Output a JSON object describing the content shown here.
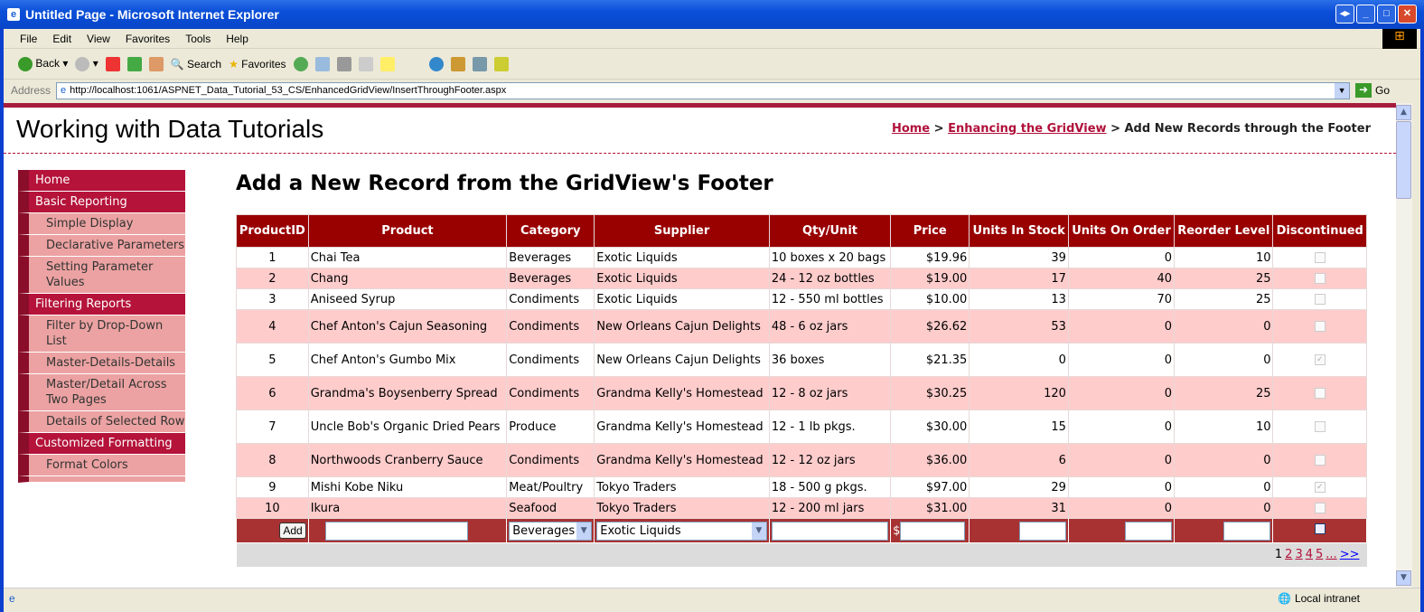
{
  "window": {
    "title": "Untitled Page - Microsoft Internet Explorer"
  },
  "menu": [
    "File",
    "Edit",
    "View",
    "Favorites",
    "Tools",
    "Help"
  ],
  "toolbar": {
    "back": "Back",
    "search": "Search",
    "favorites": "Favorites"
  },
  "address": {
    "label": "Address",
    "url": "http://localhost:1061/ASPNET_Data_Tutorial_53_CS/EnhancedGridView/InsertThroughFooter.aspx",
    "go": "Go"
  },
  "site": {
    "title": "Working with Data Tutorials"
  },
  "breadcrumb": {
    "home": "Home",
    "sep": ">",
    "section": "Enhancing the GridView",
    "current": "Add New Records through the Footer"
  },
  "sidebar": [
    {
      "label": "Home",
      "sub": false
    },
    {
      "label": "Basic Reporting",
      "sub": false
    },
    {
      "label": "Simple Display",
      "sub": true
    },
    {
      "label": "Declarative Parameters",
      "sub": true
    },
    {
      "label": "Setting Parameter Values",
      "sub": true
    },
    {
      "label": "Filtering Reports",
      "sub": false
    },
    {
      "label": "Filter by Drop-Down List",
      "sub": true
    },
    {
      "label": "Master-Details-Details",
      "sub": true
    },
    {
      "label": "Master/Detail Across Two Pages",
      "sub": true
    },
    {
      "label": "Details of Selected Row",
      "sub": true
    },
    {
      "label": "Customized Formatting",
      "sub": false
    },
    {
      "label": "Format Colors",
      "sub": true
    },
    {
      "label": "",
      "sub": true
    }
  ],
  "heading": "Add a New Record from the GridView's Footer",
  "grid": {
    "columns": [
      "ProductID",
      "Product",
      "Category",
      "Supplier",
      "Qty/Unit",
      "Price",
      "Units In Stock",
      "Units On Order",
      "Reorder Level",
      "Discontinued"
    ],
    "rows": [
      [
        "1",
        "Chai Tea",
        "Beverages",
        "Exotic Liquids",
        "10 boxes x 20 bags",
        "$19.96",
        "39",
        "0",
        "10",
        false
      ],
      [
        "2",
        "Chang",
        "Beverages",
        "Exotic Liquids",
        "24 - 12 oz bottles",
        "$19.00",
        "17",
        "40",
        "25",
        false
      ],
      [
        "3",
        "Aniseed Syrup",
        "Condiments",
        "Exotic Liquids",
        "12 - 550 ml bottles",
        "$10.00",
        "13",
        "70",
        "25",
        false
      ],
      [
        "4",
        "Chef Anton's Cajun Seasoning",
        "Condiments",
        "New Orleans Cajun Delights",
        "48 - 6 oz jars",
        "$26.62",
        "53",
        "0",
        "0",
        false
      ],
      [
        "5",
        "Chef Anton's Gumbo Mix",
        "Condiments",
        "New Orleans Cajun Delights",
        "36 boxes",
        "$21.35",
        "0",
        "0",
        "0",
        true
      ],
      [
        "6",
        "Grandma's Boysenberry Spread",
        "Condiments",
        "Grandma Kelly's Homestead",
        "12 - 8 oz jars",
        "$30.25",
        "120",
        "0",
        "25",
        false
      ],
      [
        "7",
        "Uncle Bob's Organic Dried Pears",
        "Produce",
        "Grandma Kelly's Homestead",
        "12 - 1 lb pkgs.",
        "$30.00",
        "15",
        "0",
        "10",
        false
      ],
      [
        "8",
        "Northwoods Cranberry Sauce",
        "Condiments",
        "Grandma Kelly's Homestead",
        "12 - 12 oz jars",
        "$36.00",
        "6",
        "0",
        "0",
        false
      ],
      [
        "9",
        "Mishi Kobe Niku",
        "Meat/Poultry",
        "Tokyo Traders",
        "18 - 500 g pkgs.",
        "$97.00",
        "29",
        "0",
        "0",
        true
      ],
      [
        "10",
        "Ikura",
        "Seafood",
        "Tokyo Traders",
        "12 - 200 ml jars",
        "$31.00",
        "31",
        "0",
        "0",
        false
      ]
    ],
    "footer": {
      "add": "Add",
      "category": "Beverages",
      "supplier": "Exotic Liquids",
      "currency": "$"
    },
    "pager": {
      "current": "1",
      "pages": [
        "2",
        "3",
        "4",
        "5",
        "..."
      ],
      "next": ">>"
    }
  },
  "status": {
    "zone": "Local intranet"
  },
  "colors": {
    "header": "#990000",
    "alt_row": "#ffcccc",
    "footer": "#a83232",
    "sidebar": "#b5133a",
    "sidebar_sub": "#eca2a2"
  }
}
